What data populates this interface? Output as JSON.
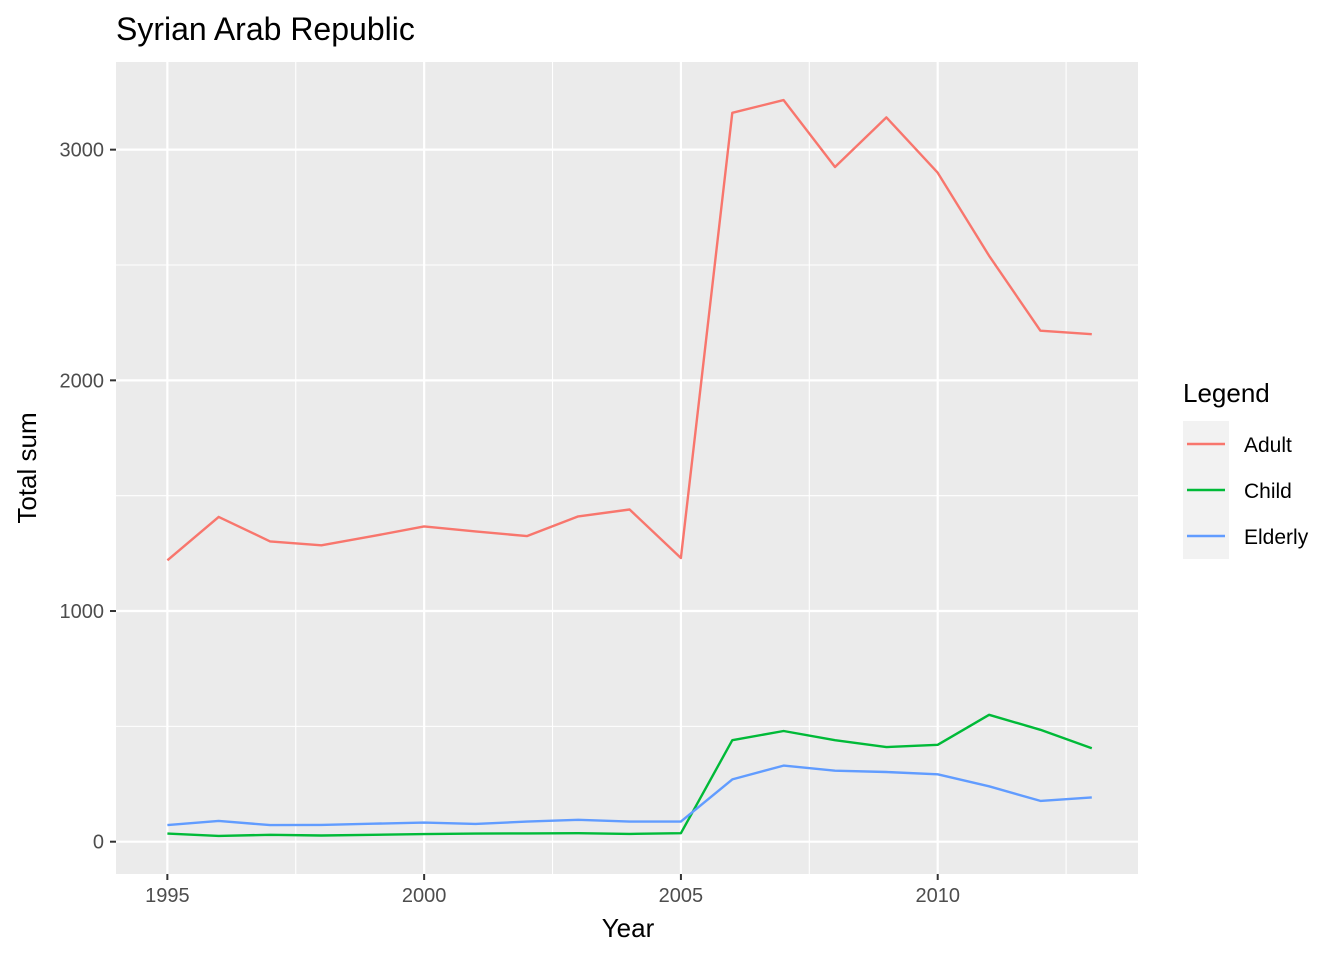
{
  "chart_data": {
    "type": "line",
    "title": "Syrian Arab Republic",
    "xlabel": "Year",
    "ylabel": "Total sum",
    "xlim": [
      1994.0,
      2013.9
    ],
    "ylim": [
      -140,
      3380
    ],
    "x_ticks": [
      1995,
      2000,
      2005,
      2010
    ],
    "y_ticks": [
      0,
      1000,
      2000,
      3000
    ],
    "grid": true,
    "legend": {
      "title": "Legend",
      "position": "right"
    },
    "x": [
      1995,
      1996,
      1997,
      1998,
      1999,
      2000,
      2001,
      2002,
      2003,
      2004,
      2005,
      2006,
      2007,
      2008,
      2009,
      2010,
      2011,
      2012,
      2013
    ],
    "series": [
      {
        "name": "Adult",
        "color": "#F8766D",
        "values": [
          1220,
          1408,
          1302,
          1285,
          1325,
          1367,
          1345,
          1325,
          1410,
          1440,
          1230,
          3160,
          3215,
          2925,
          3140,
          2900,
          2540,
          2215,
          2200
        ]
      },
      {
        "name": "Child",
        "color": "#00BA38",
        "values": [
          35,
          25,
          30,
          27,
          30,
          33,
          35,
          36,
          37,
          34,
          37,
          440,
          480,
          440,
          410,
          420,
          550,
          485,
          405
        ]
      },
      {
        "name": "Elderly",
        "color": "#619CFF",
        "values": [
          72,
          90,
          72,
          73,
          78,
          83,
          77,
          87,
          95,
          87,
          87,
          270,
          330,
          308,
          302,
          292,
          240,
          177,
          192
        ]
      }
    ]
  }
}
